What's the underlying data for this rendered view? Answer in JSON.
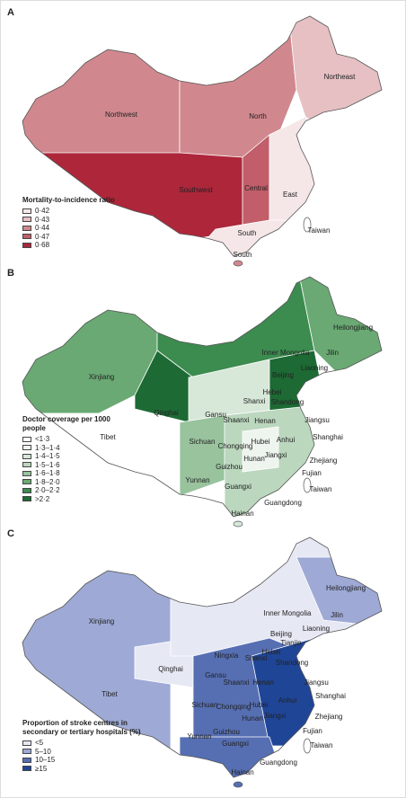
{
  "panels": [
    {
      "label": "A",
      "legend": {
        "title": "Mortality-to-incidence ratio",
        "items": [
          {
            "label": "0·42",
            "color": "#f5e6e7"
          },
          {
            "label": "0·43",
            "color": "#e6c0c3"
          },
          {
            "label": "0·44",
            "color": "#d0888e"
          },
          {
            "label": "0·47",
            "color": "#c15e69"
          },
          {
            "label": "0·68",
            "color": "#ad263a"
          }
        ]
      },
      "regions": [
        "Northwest",
        "North",
        "Northeast",
        "Southwest",
        "Central",
        "East",
        "South",
        "Taiwan",
        "South"
      ]
    },
    {
      "label": "B",
      "legend": {
        "title": "Doctor coverage per 1000 people",
        "items": [
          {
            "label": "<1·3",
            "color": "#ffffff"
          },
          {
            "label": "1·3–1·4",
            "color": "#eef4ee"
          },
          {
            "label": "1·4–1·5",
            "color": "#d7e7d8"
          },
          {
            "label": "1·5–1·6",
            "color": "#bbd7be"
          },
          {
            "label": "1·6–1·8",
            "color": "#98c39d"
          },
          {
            "label": "1·8–2·0",
            "color": "#6aa974"
          },
          {
            "label": "2·0–2·2",
            "color": "#3c8b4f"
          },
          {
            "label": ">2·2",
            "color": "#1d6a34"
          }
        ]
      },
      "regions": [
        "Heilongjiang",
        "Jilin",
        "Inner Mongolia",
        "Liaoning",
        "Beijing",
        "Hebei",
        "Shanxi",
        "Shandong",
        "Henan",
        "Gansu",
        "Shaanxi",
        "Qinghai",
        "Xinjiang",
        "Tibet",
        "Sichuan",
        "Chongqing",
        "Hubei",
        "Anhui",
        "Jiangsu",
        "Shanghai",
        "Jiangxi",
        "Zhejiang",
        "Hunan",
        "Guizhou",
        "Fujian",
        "Yunnan",
        "Guangxi",
        "Taiwan",
        "Guangdong",
        "Hainan"
      ]
    },
    {
      "label": "C",
      "legend": {
        "title": "Proportion of stroke centres in secondary or tertiary hospitals (%)",
        "items": [
          {
            "label": "<5",
            "color": "#e6e8f4"
          },
          {
            "label": "5–10",
            "color": "#9eaad5"
          },
          {
            "label": "10–15",
            "color": "#566fb3"
          },
          {
            "label": "≥15",
            "color": "#1f4596"
          }
        ]
      },
      "regions": [
        "Heilongjiang",
        "Jilin",
        "Inner Mongolia",
        "Liaoning",
        "Beijing",
        "Tianjin",
        "Hebei",
        "Shanxi",
        "Shandong",
        "Henan",
        "Ningxia",
        "Gansu",
        "Shaanxi",
        "Qinghai",
        "Xinjiang",
        "Tibet",
        "Sichuan",
        "Chongqing",
        "Hubei",
        "Anhui",
        "Jiangsu",
        "Shanghai",
        "Jiangxi",
        "Zhejiang",
        "Hunan",
        "Guizhou",
        "Fujian",
        "Yunnan",
        "Guangxi",
        "Taiwan",
        "Guangdong",
        "Hainan"
      ]
    }
  ]
}
